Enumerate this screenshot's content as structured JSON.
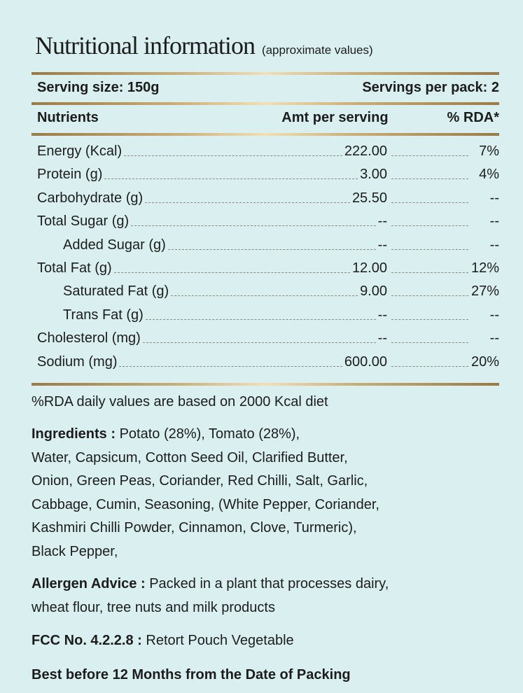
{
  "title": "Nutritional information",
  "subtitle": "(approximate values)",
  "serving_size": "Serving size: 150g",
  "servings_per_pack": "Servings per pack: 2",
  "headers": {
    "nutrients": "Nutrients",
    "amount": "Amt per serving",
    "rda": "% RDA*"
  },
  "rows": [
    {
      "name": "Energy (Kcal)",
      "amount": "222.00",
      "rda": "7%"
    },
    {
      "name": "Protein (g)",
      "amount": "3.00",
      "rda": "4%"
    },
    {
      "name": "Carbohydrate (g)",
      "amount": "25.50",
      "rda": "--"
    },
    {
      "name": "Total Sugar (g)",
      "amount": "--",
      "rda": "--"
    },
    {
      "name": "Added Sugar (g)",
      "amount": "--",
      "rda": "--"
    },
    {
      "name": "Total Fat (g)",
      "amount": "12.00",
      "rda": "12%"
    },
    {
      "name": "Saturated Fat (g)",
      "amount": "9.00",
      "rda": "27%"
    },
    {
      "name": "Trans Fat (g)",
      "amount": "--",
      "rda": "--"
    },
    {
      "name": "Cholesterol (mg)",
      "amount": "--",
      "rda": "--"
    },
    {
      "name": "Sodium (mg)",
      "amount": "600.00",
      "rda": "20%"
    }
  ],
  "footnote": "%RDA daily values are based on 2000 Kcal diet",
  "ingredients": {
    "label": "Ingredients :",
    "lines": [
      "Potato (28%), Tomato (28%),",
      "Water, Capsicum, Cotton Seed Oil, Clarified Butter,",
      "Onion, Green Peas, Coriander, Red Chilli, Salt, Garlic,",
      "Cabbage, Cumin, Seasoning, (White Pepper, Coriander,",
      "Kashmiri Chilli Powder, Cinnamon, Clove, Turmeric),",
      "Black Pepper,"
    ]
  },
  "allergen": {
    "label": "Allergen Advice :",
    "lines": [
      "Packed in a plant that processes dairy,",
      "wheat flour, tree nuts and milk products"
    ]
  },
  "fcc": {
    "label": "FCC No. 4.2.2.8 :",
    "text": "Retort Pouch Vegetable"
  },
  "best_before": "Best before 12 Months from the Date of Packing"
}
